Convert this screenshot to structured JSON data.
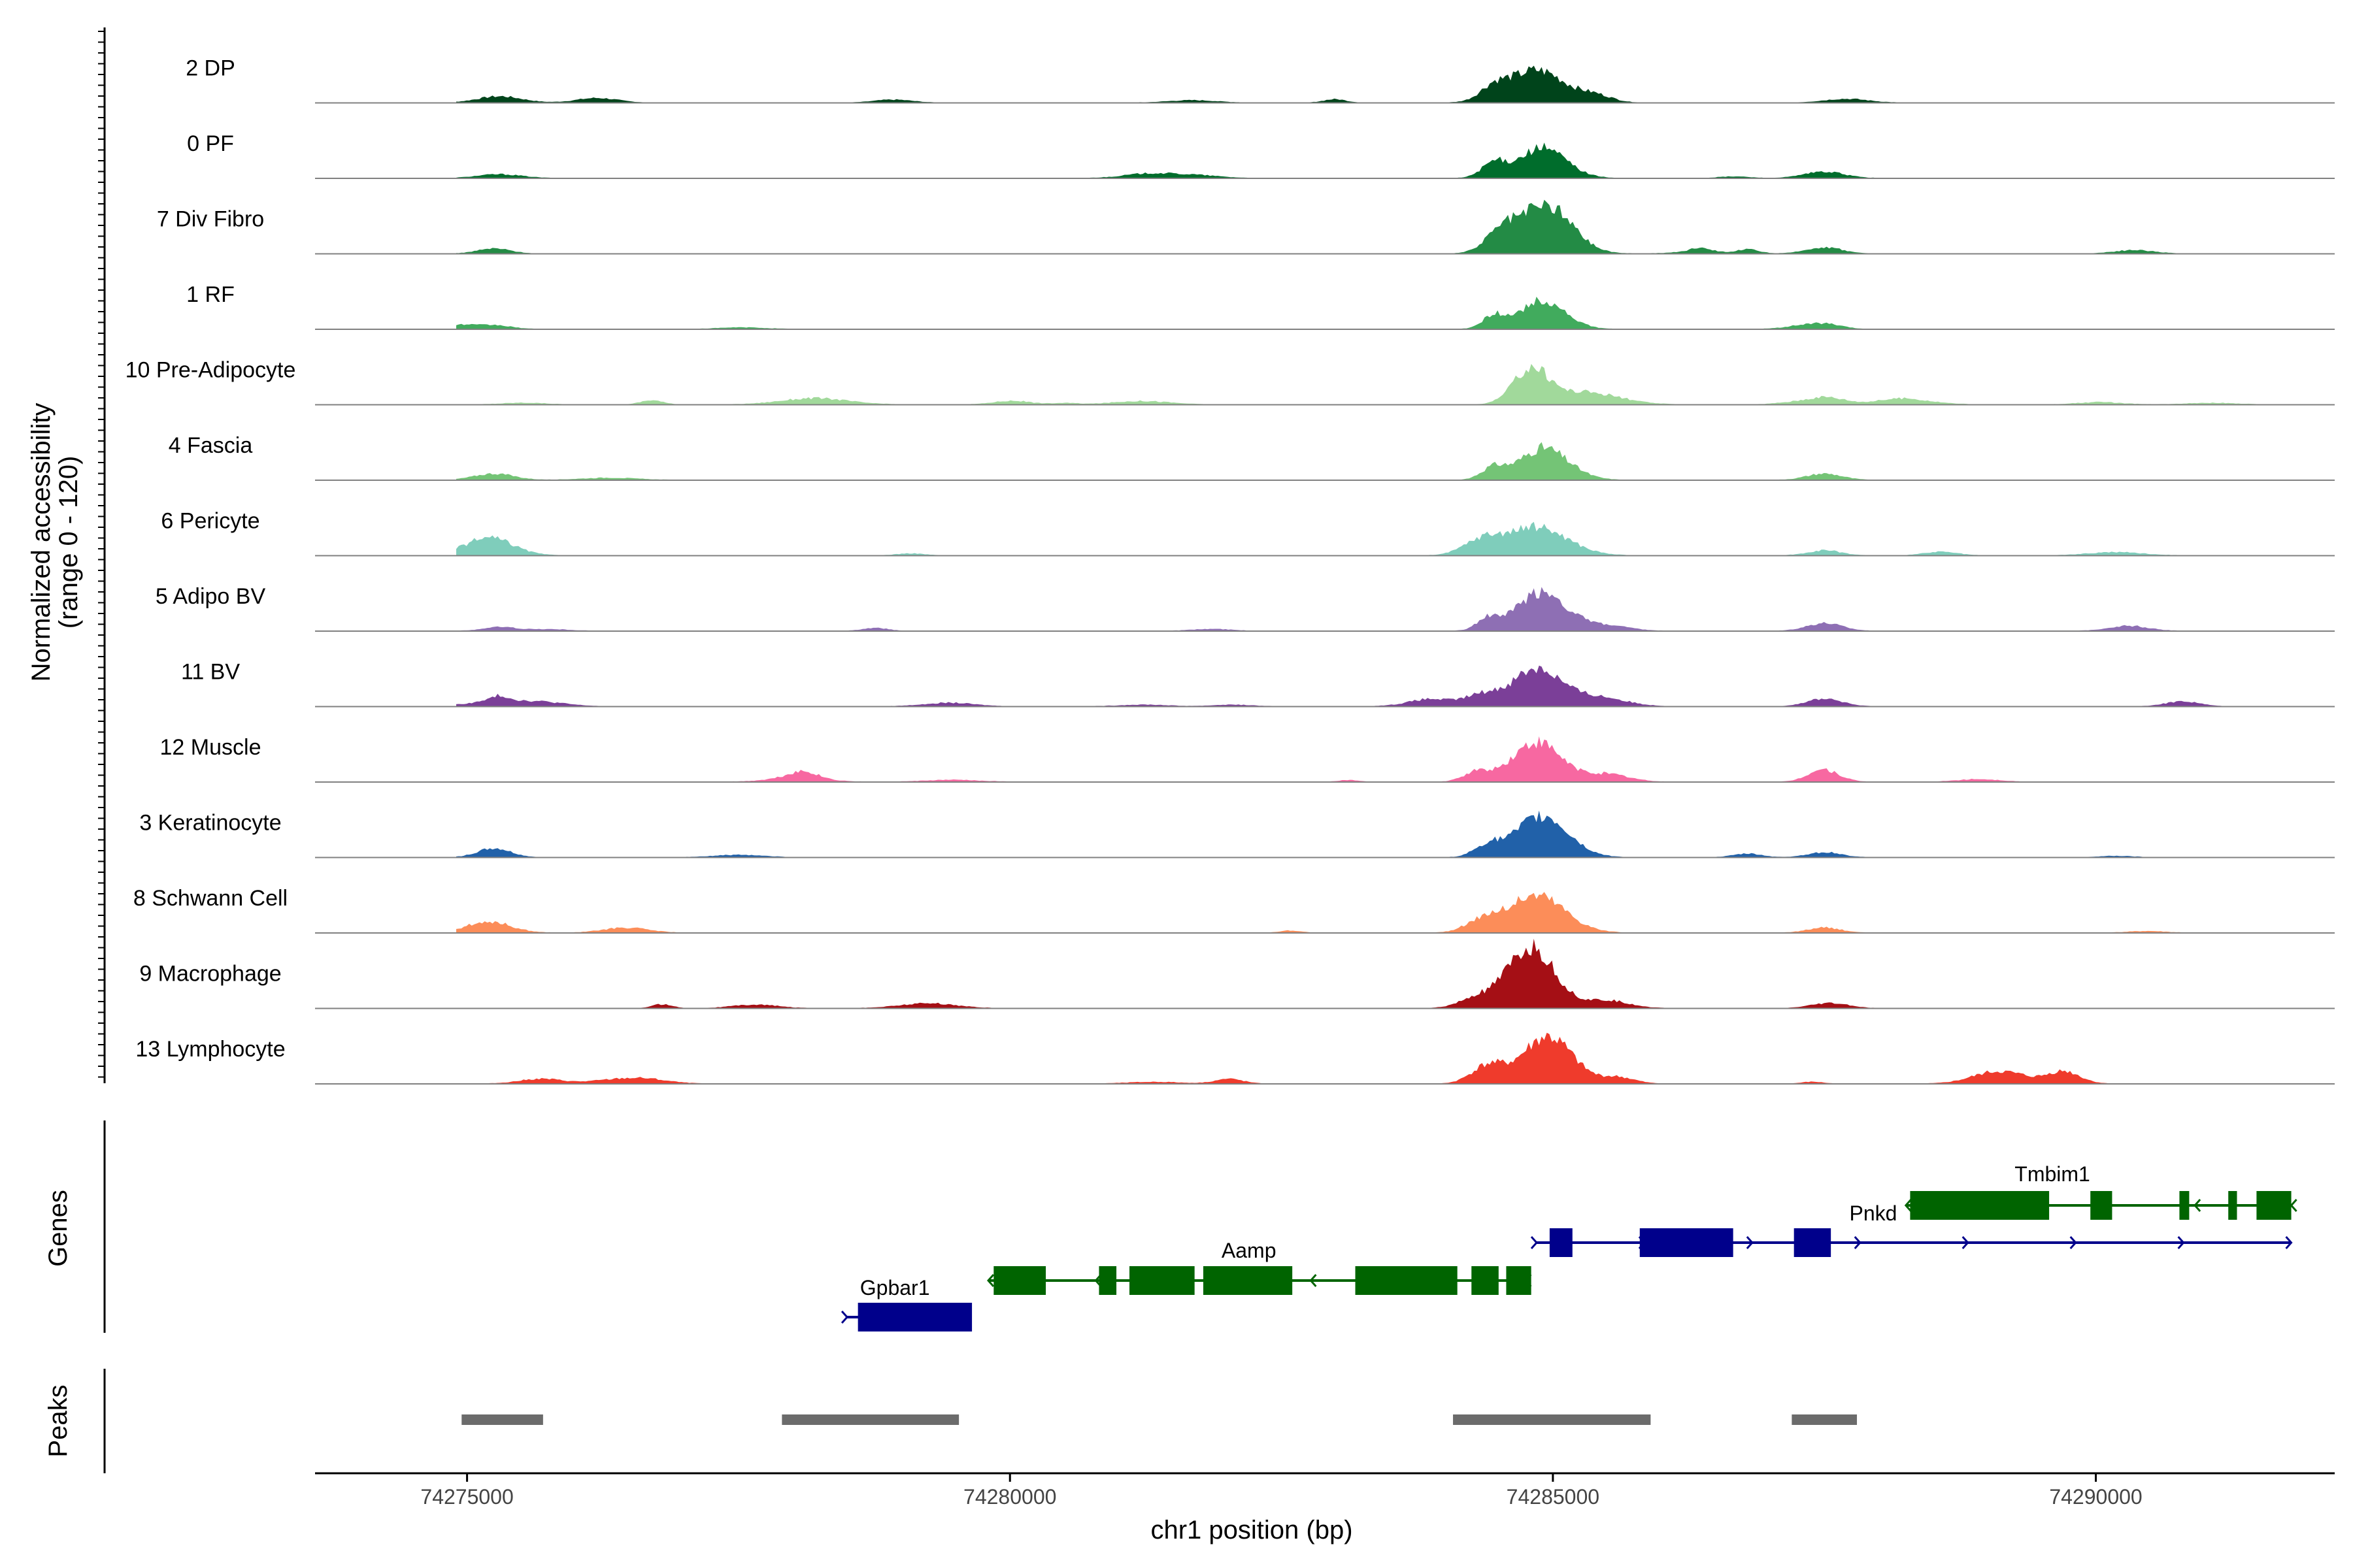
{
  "chart_data": {
    "type": "area",
    "title": "",
    "ylabel_line1": "Normalized accessibility",
    "ylabel_line2": "(range 0 - 120)",
    "xlabel": "chr1 position (bp)",
    "xlim": [
      74273600,
      74292200
    ],
    "ylim": [
      0,
      120
    ],
    "x_ticks": [
      74275000,
      74280000,
      74285000,
      74290000
    ],
    "x_tick_labels": [
      "74275000",
      "74280000",
      "74285000",
      "74290000"
    ],
    "series": [
      {
        "name": "2 DP",
        "color": "#00441B",
        "peaks": [
          [
            74275300,
            10,
            200
          ],
          [
            74284850,
            52,
            260
          ],
          [
            74284450,
            18,
            120
          ],
          [
            74285400,
            10,
            150
          ],
          [
            74287700,
            6,
            200
          ]
        ],
        "noise": 4
      },
      {
        "name": "0 PF",
        "color": "#006D2C",
        "peaks": [
          [
            74275300,
            6,
            200
          ],
          [
            74284900,
            48,
            220
          ],
          [
            74284450,
            22,
            110
          ],
          [
            74287500,
            10,
            180
          ]
        ],
        "noise": 3
      },
      {
        "name": "7 Div Fibro",
        "color": "#238B45",
        "peaks": [
          [
            74275250,
            8,
            150
          ],
          [
            74284950,
            75,
            230
          ],
          [
            74284550,
            30,
            160
          ],
          [
            74287500,
            10,
            160
          ],
          [
            74286800,
            6,
            100
          ]
        ],
        "noise": 4
      },
      {
        "name": "1 RF",
        "color": "#41AB5D",
        "peaks": [
          [
            74275250,
            6,
            150
          ],
          [
            74284900,
            45,
            210
          ],
          [
            74284450,
            20,
            100
          ],
          [
            74287500,
            8,
            150
          ]
        ],
        "noise": 3
      },
      {
        "name": "10 Pre-Adipocyte",
        "color": "#A1D99B",
        "peaks": [
          [
            74284800,
            55,
            160
          ],
          [
            74285300,
            20,
            300
          ],
          [
            74287500,
            12,
            180
          ],
          [
            74278200,
            10,
            300
          ]
        ],
        "noise": 10
      },
      {
        "name": "4 Fascia",
        "color": "#74C476",
        "peaks": [
          [
            74275250,
            10,
            180
          ],
          [
            74284900,
            45,
            220
          ],
          [
            74284450,
            18,
            110
          ],
          [
            74287500,
            10,
            160
          ]
        ],
        "noise": 3
      },
      {
        "name": "6 Pericyte",
        "color": "#7FCDBB",
        "peaks": [
          [
            74275200,
            28,
            220
          ],
          [
            74284850,
            45,
            280
          ],
          [
            74284350,
            22,
            170
          ],
          [
            74287500,
            8,
            150
          ]
        ],
        "noise": 3
      },
      {
        "name": "5 Adipo BV",
        "color": "#8E6FB4",
        "peaks": [
          [
            74284900,
            62,
            230
          ],
          [
            74284400,
            18,
            100
          ],
          [
            74285500,
            8,
            200
          ],
          [
            74287500,
            12,
            160
          ],
          [
            74290300,
            8,
            180
          ],
          [
            74275300,
            6,
            150
          ]
        ],
        "noise": 3
      },
      {
        "name": "11 BV",
        "color": "#7B3F98",
        "peaks": [
          [
            74284850,
            58,
            220
          ],
          [
            74285400,
            15,
            250
          ],
          [
            74284350,
            15,
            150
          ],
          [
            74287500,
            12,
            160
          ],
          [
            74290800,
            8,
            150
          ],
          [
            74275300,
            8,
            80
          ]
        ],
        "noise": 8
      },
      {
        "name": "12 Muscle",
        "color": "#F768A1",
        "peaks": [
          [
            74284850,
            62,
            230
          ],
          [
            74285500,
            12,
            200
          ],
          [
            74284300,
            15,
            120
          ],
          [
            74287500,
            18,
            140
          ],
          [
            74278100,
            8,
            120
          ]
        ],
        "noise": 6
      },
      {
        "name": "3 Keratinocyte",
        "color": "#2161A9",
        "peaks": [
          [
            74284900,
            65,
            240
          ],
          [
            74284400,
            18,
            120
          ],
          [
            74275250,
            14,
            150
          ],
          [
            74287500,
            8,
            150
          ]
        ],
        "noise": 3
      },
      {
        "name": "8 Schwann Cell",
        "color": "#FC8D59",
        "peaks": [
          [
            74284850,
            60,
            260
          ],
          [
            74284350,
            18,
            150
          ],
          [
            74275200,
            18,
            200
          ],
          [
            74287500,
            8,
            150
          ]
        ],
        "noise": 3
      },
      {
        "name": "9 Macrophage",
        "color": "#A50F15",
        "peaks": [
          [
            74284800,
            95,
            220
          ],
          [
            74284300,
            15,
            160
          ],
          [
            74285500,
            12,
            200
          ],
          [
            74287500,
            6,
            150
          ]
        ],
        "noise": 4
      },
      {
        "name": "13 Lymphocyte",
        "color": "#EF3B2C",
        "peaks": [
          [
            74284950,
            75,
            230
          ],
          [
            74284400,
            28,
            150
          ],
          [
            74285600,
            10,
            150
          ],
          [
            74289100,
            15,
            200
          ],
          [
            74289700,
            20,
            150
          ]
        ],
        "noise": 9
      }
    ],
    "genes_label": "Genes",
    "genes": [
      {
        "name": "Gpbar1",
        "strand": "+",
        "color": "#00008B",
        "start": 74278500,
        "end": 74279620,
        "exons": [
          [
            74278600,
            74279650
          ]
        ]
      },
      {
        "name": "Aamp",
        "strand": "-",
        "color": "#006400",
        "start": 74279800,
        "end": 74284750,
        "exons": [
          [
            74279850,
            74280330
          ],
          [
            74280820,
            74280980
          ],
          [
            74281100,
            74281700
          ],
          [
            74281780,
            74282600
          ],
          [
            74283180,
            74284120
          ],
          [
            74284250,
            74284500
          ],
          [
            74284570,
            74284800
          ]
        ]
      },
      {
        "name": "Pnkd",
        "strand": "+",
        "color": "#00008B",
        "start": 74284850,
        "end": 74291800,
        "exons": [
          [
            74284970,
            74285180
          ],
          [
            74285800,
            74286660
          ],
          [
            74287220,
            74287560
          ]
        ]
      },
      {
        "name": "Tmbim1",
        "strand": "-",
        "color": "#006400",
        "start": 74288250,
        "end": 74291800,
        "exons": [
          [
            74288290,
            74289570
          ],
          [
            74289950,
            74290150
          ],
          [
            74290770,
            74290860
          ],
          [
            74291220,
            74291300
          ],
          [
            74291480,
            74291800
          ]
        ]
      }
    ],
    "peaks_label": "Peaks",
    "peaks_color": "#6B6B6B",
    "peak_regions": [
      [
        74274950,
        74275700
      ],
      [
        74277900,
        74279530
      ],
      [
        74284080,
        74285900
      ],
      [
        74287200,
        74287800
      ]
    ]
  }
}
